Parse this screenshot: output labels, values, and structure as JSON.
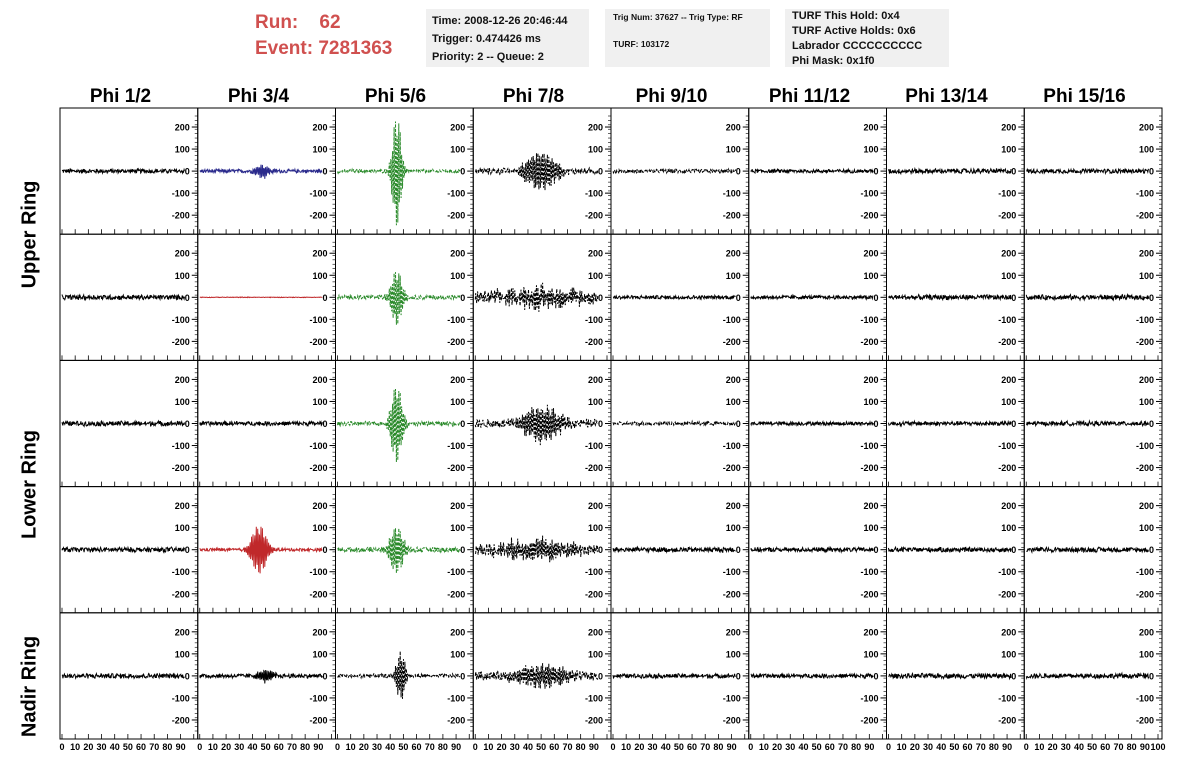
{
  "header": {
    "run_label": "Run:",
    "run_value": "62",
    "event_label": "Event:",
    "event_value": "7281363"
  },
  "info": {
    "time": "Time: 2008-12-26 20:46:44",
    "trigger": "Trigger: 0.474426 ms",
    "priority": "Priority: 2 -- Queue: 2",
    "trig_num": "Trig Num: 37627 -- Trig Type: RF",
    "turf": "TURF: 103172",
    "turf_this_hold": "TURF This Hold: 0x4",
    "turf_active_holds": "TURF Active Holds: 0x6",
    "labrador": "Labrador CCCCCCCCCC",
    "phi_mask": "Phi Mask: 0x1f0"
  },
  "columns": [
    "Phi 1/2",
    "Phi 3/4",
    "Phi 5/6",
    "Phi 7/8",
    "Phi 9/10",
    "Phi 11/12",
    "Phi 13/14",
    "Phi 15/16"
  ],
  "rings": {
    "upper": "Upper Ring",
    "lower": "Lower Ring",
    "nadir": "Nadir Ring"
  },
  "chart_data": {
    "type": "line",
    "layout": "grid 5 rows x 8 columns of waveform panels",
    "x": {
      "range": [
        0,
        100
      ],
      "ticks": [
        0,
        10,
        20,
        30,
        40,
        50,
        60,
        70,
        80,
        90,
        100
      ],
      "tick_labels": [
        "0",
        "10",
        "20",
        "30",
        "40",
        "50",
        "60",
        "70",
        "80",
        "90",
        "100"
      ]
    },
    "y": {
      "range": [
        -250,
        250
      ],
      "ticks": [
        -200,
        -100,
        0,
        100,
        200
      ],
      "tick_labels": [
        "-200",
        "-100",
        "0",
        "100",
        "200"
      ]
    },
    "colors": {
      "default": "#000000",
      "blue": "#2a2a8c",
      "red": "#c0282a",
      "green": "#2a8a2a"
    },
    "panels": [
      {
        "row": 0,
        "col": 0,
        "color": "default",
        "style": "solid",
        "noise": 7,
        "peak": 0,
        "center": 45,
        "width": 8
      },
      {
        "row": 0,
        "col": 1,
        "color": "blue",
        "style": "solid",
        "noise": 6,
        "peak": 30,
        "center": 48,
        "width": 6
      },
      {
        "row": 0,
        "col": 2,
        "color": "green",
        "style": "dashed",
        "noise": 6,
        "peak": 260,
        "center": 45,
        "width": 4
      },
      {
        "row": 0,
        "col": 3,
        "color": "default",
        "style": "dashed",
        "noise": 10,
        "peak": 85,
        "center": 50,
        "width": 14
      },
      {
        "row": 0,
        "col": 4,
        "color": "default",
        "style": "dashed",
        "noise": 6,
        "peak": 0,
        "center": 45,
        "width": 8
      },
      {
        "row": 0,
        "col": 5,
        "color": "default",
        "style": "solid",
        "noise": 6,
        "peak": 0,
        "center": 45,
        "width": 8
      },
      {
        "row": 0,
        "col": 6,
        "color": "default",
        "style": "solid",
        "noise": 8,
        "peak": 0,
        "center": 45,
        "width": 8
      },
      {
        "row": 0,
        "col": 7,
        "color": "default",
        "style": "solid",
        "noise": 7,
        "peak": 0,
        "center": 45,
        "width": 8
      },
      {
        "row": 1,
        "col": 0,
        "color": "default",
        "style": "solid",
        "noise": 8,
        "peak": 0,
        "center": 45,
        "width": 8
      },
      {
        "row": 1,
        "col": 1,
        "color": "red",
        "style": "solid",
        "noise": 1,
        "peak": 0,
        "center": 45,
        "width": 8
      },
      {
        "row": 1,
        "col": 2,
        "color": "green",
        "style": "dashed",
        "noise": 7,
        "peak": 130,
        "center": 45,
        "width": 5
      },
      {
        "row": 1,
        "col": 3,
        "color": "default",
        "style": "dashed",
        "noise": 20,
        "peak": 40,
        "center": 50,
        "width": 30
      },
      {
        "row": 1,
        "col": 4,
        "color": "default",
        "style": "solid",
        "noise": 6,
        "peak": 0,
        "center": 45,
        "width": 8
      },
      {
        "row": 1,
        "col": 5,
        "color": "default",
        "style": "solid",
        "noise": 6,
        "peak": 0,
        "center": 45,
        "width": 8
      },
      {
        "row": 1,
        "col": 6,
        "color": "default",
        "style": "solid",
        "noise": 8,
        "peak": 0,
        "center": 45,
        "width": 8
      },
      {
        "row": 1,
        "col": 7,
        "color": "default",
        "style": "solid",
        "noise": 8,
        "peak": 0,
        "center": 45,
        "width": 8
      },
      {
        "row": 2,
        "col": 0,
        "color": "default",
        "style": "solid",
        "noise": 8,
        "peak": 0,
        "center": 45,
        "width": 8
      },
      {
        "row": 2,
        "col": 1,
        "color": "default",
        "style": "solid",
        "noise": 7,
        "peak": 0,
        "center": 45,
        "width": 8
      },
      {
        "row": 2,
        "col": 2,
        "color": "green",
        "style": "dashed",
        "noise": 7,
        "peak": 180,
        "center": 45,
        "width": 5
      },
      {
        "row": 2,
        "col": 3,
        "color": "default",
        "style": "dashed",
        "noise": 14,
        "peak": 80,
        "center": 50,
        "width": 16
      },
      {
        "row": 2,
        "col": 4,
        "color": "default",
        "style": "dashed",
        "noise": 6,
        "peak": 0,
        "center": 45,
        "width": 8
      },
      {
        "row": 2,
        "col": 5,
        "color": "default",
        "style": "solid",
        "noise": 6,
        "peak": 0,
        "center": 45,
        "width": 8
      },
      {
        "row": 2,
        "col": 6,
        "color": "default",
        "style": "solid",
        "noise": 7,
        "peak": 0,
        "center": 45,
        "width": 8
      },
      {
        "row": 2,
        "col": 7,
        "color": "default",
        "style": "solid",
        "noise": 7,
        "peak": 0,
        "center": 45,
        "width": 8
      },
      {
        "row": 3,
        "col": 0,
        "color": "default",
        "style": "solid",
        "noise": 8,
        "peak": 0,
        "center": 45,
        "width": 8
      },
      {
        "row": 3,
        "col": 1,
        "color": "red",
        "style": "solid",
        "noise": 5,
        "peak": 110,
        "center": 45,
        "width": 7
      },
      {
        "row": 3,
        "col": 2,
        "color": "green",
        "style": "dashed",
        "noise": 8,
        "peak": 110,
        "center": 45,
        "width": 6
      },
      {
        "row": 3,
        "col": 3,
        "color": "default",
        "style": "dashed",
        "noise": 18,
        "peak": 40,
        "center": 45,
        "width": 30
      },
      {
        "row": 3,
        "col": 4,
        "color": "default",
        "style": "solid",
        "noise": 8,
        "peak": 0,
        "center": 45,
        "width": 8
      },
      {
        "row": 3,
        "col": 5,
        "color": "default",
        "style": "solid",
        "noise": 7,
        "peak": 0,
        "center": 45,
        "width": 8
      },
      {
        "row": 3,
        "col": 6,
        "color": "default",
        "style": "solid",
        "noise": 8,
        "peak": 0,
        "center": 45,
        "width": 8
      },
      {
        "row": 3,
        "col": 7,
        "color": "default",
        "style": "solid",
        "noise": 8,
        "peak": 0,
        "center": 45,
        "width": 8
      },
      {
        "row": 4,
        "col": 0,
        "color": "default",
        "style": "solid",
        "noise": 8,
        "peak": 0,
        "center": 45,
        "width": 8
      },
      {
        "row": 4,
        "col": 1,
        "color": "default",
        "style": "solid",
        "noise": 7,
        "peak": 30,
        "center": 50,
        "width": 6
      },
      {
        "row": 4,
        "col": 2,
        "color": "default",
        "style": "dashed",
        "noise": 6,
        "peak": 110,
        "center": 48,
        "width": 4
      },
      {
        "row": 4,
        "col": 3,
        "color": "default",
        "style": "dashed",
        "noise": 14,
        "peak": 50,
        "center": 50,
        "width": 20
      },
      {
        "row": 4,
        "col": 4,
        "color": "default",
        "style": "solid",
        "noise": 7,
        "peak": 0,
        "center": 45,
        "width": 8
      },
      {
        "row": 4,
        "col": 5,
        "color": "default",
        "style": "solid",
        "noise": 7,
        "peak": 0,
        "center": 45,
        "width": 8
      },
      {
        "row": 4,
        "col": 6,
        "color": "default",
        "style": "solid",
        "noise": 8,
        "peak": 0,
        "center": 45,
        "width": 8
      },
      {
        "row": 4,
        "col": 7,
        "color": "default",
        "style": "solid",
        "noise": 8,
        "peak": 0,
        "center": 45,
        "width": 8
      }
    ]
  }
}
